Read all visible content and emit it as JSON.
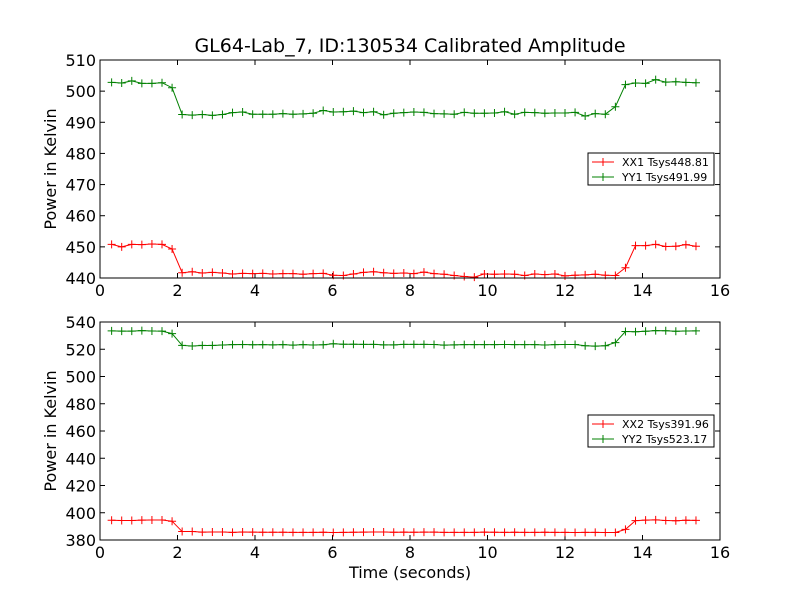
{
  "title": "GL64-Lab_7, ID:130534 Calibrated Amplitude",
  "colors": {
    "red": "#ff0000",
    "green": "#008000"
  },
  "chart_data": [
    {
      "type": "line",
      "xlabel": "",
      "ylabel": "Power in Kelvin",
      "xlim": [
        0,
        16
      ],
      "ylim": [
        440,
        510
      ],
      "xticks": [
        "0",
        "2",
        "4",
        "6",
        "8",
        "10",
        "12",
        "14",
        "16"
      ],
      "yticks": [
        "440",
        "450",
        "460",
        "470",
        "480",
        "490",
        "500",
        "510"
      ],
      "grid": false,
      "legend_position": "right",
      "x": [
        0.3,
        0.56,
        0.82,
        1.08,
        1.34,
        1.6,
        1.86,
        2.12,
        2.38,
        2.64,
        2.9,
        3.16,
        3.42,
        3.68,
        3.94,
        4.2,
        4.46,
        4.72,
        4.98,
        5.24,
        5.5,
        5.76,
        6.02,
        6.28,
        6.54,
        6.8,
        7.06,
        7.32,
        7.58,
        7.84,
        8.1,
        8.36,
        8.62,
        8.88,
        9.14,
        9.4,
        9.66,
        9.92,
        10.18,
        10.44,
        10.7,
        10.96,
        11.22,
        11.48,
        11.74,
        12.0,
        12.26,
        12.52,
        12.78,
        13.04,
        13.3,
        13.56,
        13.82,
        14.08,
        14.34,
        14.6,
        14.86,
        15.12,
        15.38
      ],
      "series": [
        {
          "name": "XX1 Tsys448.81",
          "color": "#ff0000",
          "values": [
            450.8,
            450.0,
            450.8,
            450.7,
            450.9,
            450.8,
            449.3,
            441.7,
            442.0,
            441.6,
            441.8,
            441.6,
            441.3,
            441.5,
            441.4,
            441.5,
            441.3,
            441.4,
            441.4,
            441.2,
            441.4,
            441.5,
            440.9,
            440.8,
            441.3,
            441.8,
            442.0,
            441.7,
            441.5,
            441.6,
            441.4,
            441.9,
            441.4,
            441.2,
            440.8,
            440.5,
            440.3,
            441.3,
            441.2,
            441.3,
            441.2,
            440.8,
            441.3,
            441.1,
            441.3,
            440.7,
            440.9,
            441.0,
            441.2,
            440.9,
            440.8,
            443.3,
            450.4,
            450.4,
            450.8,
            450.1,
            450.2,
            450.7,
            450.2
          ]
        },
        {
          "name": "YY1 Tsys491.99",
          "color": "#008000",
          "values": [
            502.8,
            502.6,
            503.3,
            502.5,
            502.5,
            502.7,
            501.1,
            492.5,
            492.3,
            492.5,
            492.2,
            492.5,
            493.1,
            493.3,
            492.6,
            492.6,
            492.6,
            492.8,
            492.6,
            492.7,
            492.9,
            493.8,
            493.3,
            493.4,
            493.6,
            493.1,
            493.4,
            492.4,
            492.9,
            493.1,
            493.3,
            493.2,
            492.8,
            492.7,
            492.6,
            493.2,
            492.9,
            492.9,
            493.0,
            493.4,
            492.6,
            493.2,
            493.1,
            492.9,
            493.0,
            493.0,
            493.2,
            492.0,
            492.8,
            492.6,
            495.0,
            502.1,
            502.6,
            502.5,
            503.7,
            502.9,
            503.0,
            502.8,
            502.7
          ]
        }
      ]
    },
    {
      "type": "line",
      "xlabel": "Time (seconds)",
      "ylabel": "Power in Kelvin",
      "xlim": [
        0,
        16
      ],
      "ylim": [
        380,
        540
      ],
      "xticks": [
        "0",
        "2",
        "4",
        "6",
        "8",
        "10",
        "12",
        "14",
        "16"
      ],
      "yticks": [
        "380",
        "400",
        "420",
        "440",
        "460",
        "480",
        "500",
        "520",
        "540"
      ],
      "grid": false,
      "legend_position": "right",
      "x": [
        0.3,
        0.56,
        0.82,
        1.08,
        1.34,
        1.6,
        1.86,
        2.12,
        2.38,
        2.64,
        2.9,
        3.16,
        3.42,
        3.68,
        3.94,
        4.2,
        4.46,
        4.72,
        4.98,
        5.24,
        5.5,
        5.76,
        6.02,
        6.28,
        6.54,
        6.8,
        7.06,
        7.32,
        7.58,
        7.84,
        8.1,
        8.36,
        8.62,
        8.88,
        9.14,
        9.4,
        9.66,
        9.92,
        10.18,
        10.44,
        10.7,
        10.96,
        11.22,
        11.48,
        11.74,
        12.0,
        12.26,
        12.52,
        12.78,
        13.04,
        13.3,
        13.56,
        13.82,
        14.08,
        14.34,
        14.6,
        14.86,
        15.12,
        15.38
      ],
      "series": [
        {
          "name": "XX2 Tsys391.96",
          "color": "#ff0000",
          "values": [
            394.5,
            394.3,
            394.3,
            394.6,
            394.7,
            394.7,
            393.8,
            386.2,
            386.2,
            385.8,
            385.9,
            385.9,
            385.6,
            385.9,
            385.8,
            385.7,
            385.7,
            385.7,
            385.6,
            385.6,
            385.6,
            385.7,
            385.5,
            385.6,
            385.7,
            385.8,
            385.9,
            385.9,
            385.7,
            385.8,
            385.7,
            385.8,
            385.8,
            385.6,
            385.6,
            385.6,
            385.6,
            385.8,
            385.7,
            385.6,
            385.7,
            385.6,
            385.6,
            385.7,
            385.6,
            385.6,
            385.5,
            385.6,
            385.6,
            385.5,
            385.5,
            387.8,
            394.2,
            394.6,
            394.8,
            394.3,
            394.1,
            394.5,
            394.4
          ]
        },
        {
          "name": "YY2 Tsys523.17",
          "color": "#008000",
          "values": [
            533.5,
            533.3,
            533.3,
            533.7,
            533.4,
            533.3,
            531.5,
            522.8,
            522.4,
            522.8,
            522.8,
            523.1,
            523.4,
            523.5,
            523.3,
            523.4,
            523.2,
            523.4,
            523.0,
            523.4,
            523.1,
            523.3,
            524.0,
            523.7,
            523.7,
            523.6,
            523.6,
            523.2,
            523.2,
            523.6,
            523.6,
            523.6,
            523.5,
            523.0,
            523.2,
            523.4,
            523.4,
            523.4,
            523.4,
            523.5,
            523.4,
            523.4,
            523.4,
            523.1,
            523.4,
            523.5,
            523.5,
            522.6,
            522.3,
            522.6,
            524.9,
            533.0,
            532.8,
            533.2,
            533.7,
            533.6,
            533.2,
            533.4,
            533.5
          ]
        }
      ]
    }
  ]
}
